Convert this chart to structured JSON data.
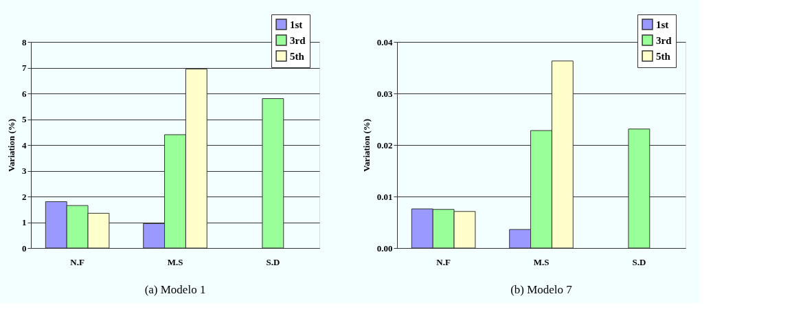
{
  "chart_data": [
    {
      "type": "bar",
      "title": "(a)  Modelo 1",
      "ylabel": "Variation (%)",
      "categories": [
        "N.F",
        "M.S",
        "S.D"
      ],
      "series": [
        {
          "name": "1st",
          "color": "#9999ff",
          "values": [
            1.8,
            0.95,
            null
          ]
        },
        {
          "name": "3rd",
          "color": "#99ff99",
          "values": [
            1.65,
            4.4,
            5.8
          ]
        },
        {
          "name": "5th",
          "color": "#ffffcc",
          "values": [
            1.35,
            6.95,
            null
          ]
        }
      ],
      "ylim": [
        0,
        8
      ],
      "yticks": [
        0,
        1,
        2,
        3,
        4,
        5,
        6,
        7,
        8
      ],
      "grid": "y",
      "legend": "top right"
    },
    {
      "type": "bar",
      "title": "(b) Modelo 7",
      "ylabel": "Variation (%)",
      "categories": [
        "N.F",
        "M.S",
        "S.D"
      ],
      "series": [
        {
          "name": "1st",
          "color": "#9999ff",
          "values": [
            0.0076,
            0.0036,
            null
          ]
        },
        {
          "name": "3rd",
          "color": "#99ff99",
          "values": [
            0.0075,
            0.0228,
            0.0231
          ]
        },
        {
          "name": "5th",
          "color": "#ffffcc",
          "values": [
            0.0071,
            0.0363,
            null
          ]
        }
      ],
      "ylim": [
        0,
        0.04
      ],
      "yticks": [
        {
          "value": 0,
          "label": "0.00"
        },
        {
          "value": 0.01,
          "label": "0.01"
        },
        {
          "value": 0.02,
          "label": "0.02"
        },
        {
          "value": 0.03,
          "label": "0.03"
        },
        {
          "value": 0.04,
          "label": "0.04"
        }
      ],
      "grid": "y",
      "legend": "top right"
    }
  ]
}
